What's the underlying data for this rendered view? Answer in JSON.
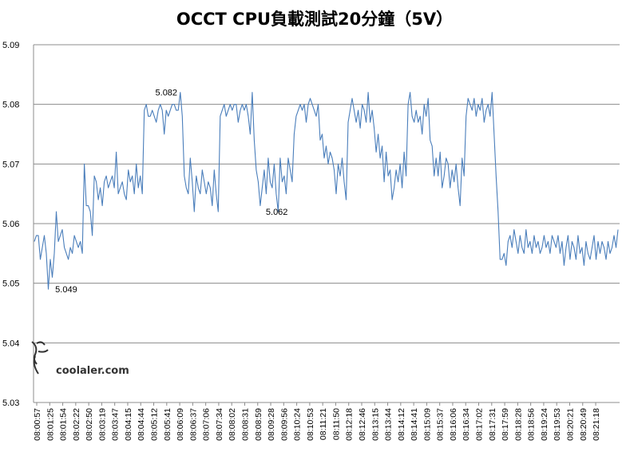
{
  "chart_data": {
    "type": "line",
    "title": "OCCT CPU負載測試20分鐘（5V）",
    "xlabel": "",
    "ylabel": "",
    "ylim": [
      5.03,
      5.09
    ],
    "yticks": [
      "5.03",
      "5.04",
      "5.05",
      "5.06",
      "5.07",
      "5.08",
      "5.09"
    ],
    "grid": "horizontal",
    "legend": "none",
    "line_color": "#4a7ebb",
    "x_tick_labels": [
      "08:00:57",
      "08:01:25",
      "08:01:54",
      "08:02:22",
      "08:02:50",
      "08:03:19",
      "08:03:47",
      "08:04:15",
      "08:04:44",
      "08:05:12",
      "08:05:41",
      "08:06:09",
      "08:06:37",
      "08:07:06",
      "08:07:34",
      "08:08:02",
      "08:08:31",
      "08:08:59",
      "08:09:28",
      "08:09:56",
      "08:10:24",
      "08:10:53",
      "08:11:21",
      "08:11:50",
      "08:12:18",
      "08:12:46",
      "08:13:15",
      "08:13:44",
      "08:14:12",
      "08:14:41",
      "08:15:09",
      "08:15:37",
      "08:16:06",
      "08:16:34",
      "08:17:02",
      "08:17:31",
      "08:17:59",
      "08:18:28",
      "08:18:56",
      "08:19:24",
      "08:19:53",
      "08:20:21",
      "08:20:49",
      "08:21:18"
    ],
    "annotations": [
      {
        "text": "5.082",
        "tick_index": 9,
        "y": 5.082
      },
      {
        "text": "5.062",
        "tick_index": 17.5,
        "y": 5.062
      },
      {
        "text": "5.049",
        "tick_index": 1.3,
        "y": 5.049
      }
    ],
    "series": [
      {
        "values": [
          5.057,
          5.058,
          5.058,
          5.054,
          5.056,
          5.058,
          5.055,
          5.049,
          5.054,
          5.051,
          5.055,
          5.062,
          5.057,
          5.058,
          5.059,
          5.056,
          5.055,
          5.054,
          5.056,
          5.055,
          5.058,
          5.057,
          5.056,
          5.057,
          5.055,
          5.07,
          5.063,
          5.063,
          5.062,
          5.058,
          5.068,
          5.067,
          5.064,
          5.066,
          5.063,
          5.067,
          5.068,
          5.066,
          5.067,
          5.068,
          5.066,
          5.072,
          5.065,
          5.066,
          5.067,
          5.065,
          5.064,
          5.069,
          5.067,
          5.068,
          5.065,
          5.07,
          5.066,
          5.068,
          5.065,
          5.079,
          5.08,
          5.078,
          5.078,
          5.079,
          5.078,
          5.077,
          5.079,
          5.08,
          5.079,
          5.075,
          5.079,
          5.078,
          5.079,
          5.08,
          5.08,
          5.079,
          5.079,
          5.082,
          5.078,
          5.068,
          5.066,
          5.065,
          5.071,
          5.067,
          5.062,
          5.068,
          5.066,
          5.065,
          5.069,
          5.067,
          5.065,
          5.067,
          5.066,
          5.063,
          5.069,
          5.065,
          5.062,
          5.078,
          5.079,
          5.08,
          5.078,
          5.079,
          5.08,
          5.079,
          5.08,
          5.08,
          5.077,
          5.079,
          5.08,
          5.079,
          5.08,
          5.078,
          5.075,
          5.082,
          5.074,
          5.069,
          5.067,
          5.063,
          5.066,
          5.069,
          5.065,
          5.071,
          5.067,
          5.066,
          5.07,
          5.065,
          5.062,
          5.071,
          5.067,
          5.068,
          5.065,
          5.071,
          5.069,
          5.067,
          5.075,
          5.078,
          5.079,
          5.08,
          5.079,
          5.08,
          5.077,
          5.08,
          5.081,
          5.08,
          5.079,
          5.078,
          5.08,
          5.074,
          5.075,
          5.071,
          5.073,
          5.07,
          5.072,
          5.071,
          5.069,
          5.065,
          5.07,
          5.068,
          5.071,
          5.067,
          5.064,
          5.077,
          5.079,
          5.081,
          5.079,
          5.077,
          5.079,
          5.076,
          5.08,
          5.079,
          5.077,
          5.082,
          5.077,
          5.079,
          5.076,
          5.072,
          5.075,
          5.071,
          5.073,
          5.067,
          5.072,
          5.068,
          5.069,
          5.064,
          5.066,
          5.069,
          5.067,
          5.07,
          5.066,
          5.072,
          5.068,
          5.08,
          5.082,
          5.078,
          5.077,
          5.079,
          5.077,
          5.078,
          5.075,
          5.08,
          5.078,
          5.081,
          5.074,
          5.073,
          5.068,
          5.071,
          5.068,
          5.072,
          5.066,
          5.068,
          5.071,
          5.07,
          5.066,
          5.069,
          5.067,
          5.07,
          5.066,
          5.063,
          5.071,
          5.068,
          5.078,
          5.081,
          5.08,
          5.079,
          5.081,
          5.078,
          5.08,
          5.079,
          5.081,
          5.077,
          5.079,
          5.08,
          5.078,
          5.082,
          5.075,
          5.068,
          5.062,
          5.054,
          5.054,
          5.055,
          5.053,
          5.057,
          5.058,
          5.056,
          5.059,
          5.057,
          5.055,
          5.058,
          5.056,
          5.055,
          5.059,
          5.056,
          5.057,
          5.055,
          5.058,
          5.056,
          5.057,
          5.055,
          5.056,
          5.058,
          5.056,
          5.057,
          5.055,
          5.058,
          5.057,
          5.056,
          5.058,
          5.055,
          5.057,
          5.053,
          5.056,
          5.058,
          5.054,
          5.057,
          5.056,
          5.054,
          5.058,
          5.055,
          5.056,
          5.053,
          5.057,
          5.055,
          5.054,
          5.056,
          5.058,
          5.054,
          5.057,
          5.055,
          5.057,
          5.056,
          5.054,
          5.057,
          5.055,
          5.056,
          5.058,
          5.056,
          5.059
        ]
      }
    ]
  },
  "watermark": "coolaler.com"
}
